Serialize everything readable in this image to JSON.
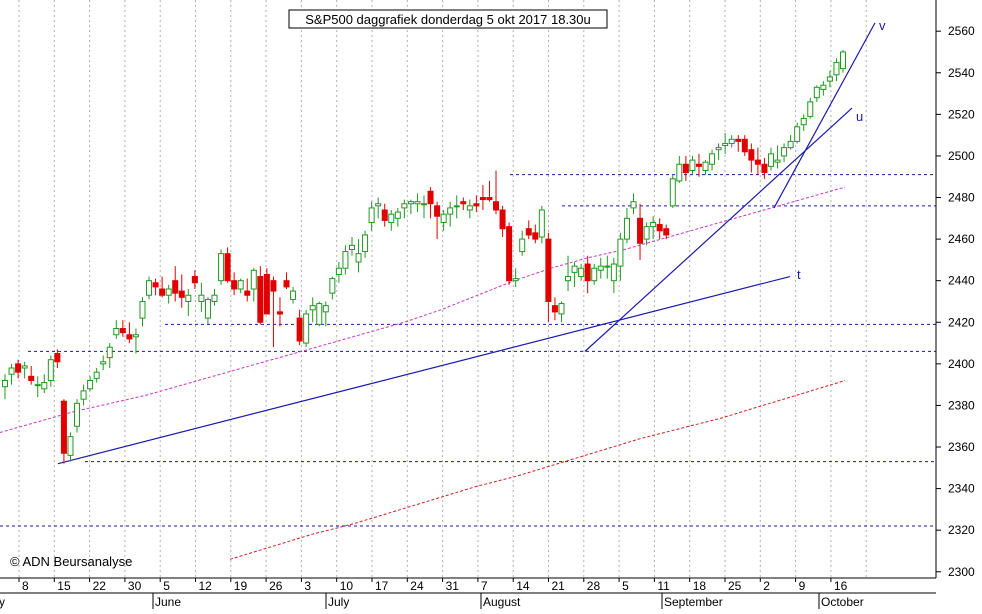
{
  "chart_data": {
    "type": "candlestick",
    "title": "S&P500 daggrafiek donderdag 5 okt 2017 18.30u",
    "copyright": "© ADN Beursanalyse",
    "ylim": [
      2297,
      2575
    ],
    "yticks": [
      2300,
      2320,
      2340,
      2360,
      2380,
      2400,
      2420,
      2440,
      2460,
      2480,
      2500,
      2520,
      2540,
      2560
    ],
    "xtick_labels": [
      "8",
      "15",
      "22",
      "30",
      "5",
      "12",
      "19",
      "26",
      "3",
      "10",
      "17",
      "24",
      "31",
      "7",
      "14",
      "21",
      "28",
      "5",
      "11",
      "18",
      "25",
      "2",
      "9",
      "16"
    ],
    "month_labels": [
      "June",
      "July",
      "August",
      "September",
      "October"
    ],
    "left_edge_label": "y",
    "candles": [
      [
        2389,
        2395,
        2383,
        2392
      ],
      [
        2395,
        2400,
        2390,
        2398
      ],
      [
        2400,
        2402,
        2393,
        2396
      ],
      [
        2398,
        2401,
        2393,
        2399
      ],
      [
        2394,
        2399,
        2390,
        2392
      ],
      [
        2390,
        2394,
        2384,
        2390
      ],
      [
        2388,
        2395,
        2386,
        2391
      ],
      [
        2392,
        2404,
        2389,
        2402
      ],
      [
        2405,
        2407,
        2398,
        2401
      ],
      [
        2382,
        2383,
        2352,
        2357
      ],
      [
        2356,
        2367,
        2353,
        2365
      ],
      [
        2370,
        2383,
        2367,
        2381
      ],
      [
        2383,
        2390,
        2380,
        2387
      ],
      [
        2388,
        2394,
        2387,
        2392
      ],
      [
        2393,
        2398,
        2391,
        2396
      ],
      [
        2400,
        2404,
        2397,
        2401
      ],
      [
        2403,
        2410,
        2398,
        2408
      ],
      [
        2414,
        2421,
        2412,
        2417
      ],
      [
        2417,
        2421,
        2413,
        2415
      ],
      [
        2414,
        2420,
        2410,
        2412
      ],
      [
        2413,
        2417,
        2405,
        2414
      ],
      [
        2422,
        2432,
        2418,
        2430
      ],
      [
        2433,
        2442,
        2431,
        2440
      ],
      [
        2439,
        2441,
        2433,
        2437
      ],
      [
        2436,
        2442,
        2432,
        2433
      ],
      [
        2433,
        2438,
        2429,
        2436
      ],
      [
        2440,
        2447,
        2430,
        2434
      ],
      [
        2435,
        2443,
        2427,
        2432
      ],
      [
        2430,
        2436,
        2423,
        2433
      ],
      [
        2442,
        2445,
        2436,
        2439
      ],
      [
        2430,
        2439,
        2425,
        2433
      ],
      [
        2422,
        2432,
        2419,
        2431
      ],
      [
        2430,
        2436,
        2428,
        2433
      ],
      [
        2440,
        2455,
        2438,
        2453
      ],
      [
        2453,
        2456,
        2439,
        2440
      ],
      [
        2440,
        2444,
        2433,
        2436
      ],
      [
        2436,
        2441,
        2434,
        2440
      ],
      [
        2435,
        2441,
        2430,
        2433
      ],
      [
        2436,
        2446,
        2430,
        2445
      ],
      [
        2442,
        2447,
        2419,
        2420
      ],
      [
        2443,
        2446,
        2424,
        2424
      ],
      [
        2440,
        2442,
        2408,
        2435
      ],
      [
        2425,
        2432,
        2418,
        2424
      ],
      [
        2440,
        2444,
        2436,
        2437
      ],
      [
        2431,
        2437,
        2429,
        2435
      ],
      [
        2422,
        2426,
        2409,
        2411
      ],
      [
        2410,
        2426,
        2408,
        2424
      ],
      [
        2426,
        2432,
        2420,
        2428
      ],
      [
        2419,
        2430,
        2418,
        2429
      ],
      [
        2425,
        2430,
        2418,
        2428
      ],
      [
        2434,
        2442,
        2431,
        2441
      ],
      [
        2443,
        2449,
        2439,
        2446
      ],
      [
        2446,
        2457,
        2443,
        2454
      ],
      [
        2455,
        2461,
        2452,
        2457
      ],
      [
        2449,
        2460,
        2444,
        2453
      ],
      [
        2454,
        2464,
        2451,
        2462
      ],
      [
        2468,
        2478,
        2464,
        2475
      ],
      [
        2476,
        2480,
        2470,
        2477
      ],
      [
        2474,
        2477,
        2466,
        2469
      ],
      [
        2468,
        2474,
        2464,
        2472
      ],
      [
        2470,
        2475,
        2466,
        2473
      ],
      [
        2475,
        2479,
        2470,
        2477
      ],
      [
        2477,
        2479,
        2472,
        2478
      ],
      [
        2477,
        2482,
        2473,
        2478
      ],
      [
        2477,
        2481,
        2470,
        2477
      ],
      [
        2483,
        2485,
        2470,
        2477
      ],
      [
        2476,
        2478,
        2460,
        2471
      ],
      [
        2468,
        2474,
        2464,
        2472
      ],
      [
        2472,
        2478,
        2466,
        2475
      ],
      [
        2476,
        2481,
        2470,
        2476
      ],
      [
        2478,
        2480,
        2474,
        2477
      ],
      [
        2474,
        2479,
        2470,
        2476
      ],
      [
        2477,
        2481,
        2473,
        2476
      ],
      [
        2480,
        2486,
        2474,
        2479
      ],
      [
        2480,
        2488,
        2478,
        2479
      ],
      [
        2478,
        2493,
        2472,
        2474
      ],
      [
        2474,
        2476,
        2461,
        2465
      ],
      [
        2466,
        2468,
        2438,
        2440
      ],
      [
        2440,
        2446,
        2437,
        2441
      ],
      [
        2454,
        2464,
        2452,
        2460
      ],
      [
        2465,
        2469,
        2460,
        2462
      ],
      [
        2463,
        2467,
        2458,
        2460
      ],
      [
        2461,
        2476,
        2458,
        2474
      ],
      [
        2460,
        2463,
        2420,
        2430
      ],
      [
        2428,
        2432,
        2421,
        2425
      ],
      [
        2424,
        2430,
        2420,
        2429
      ],
      [
        2440,
        2452,
        2435,
        2442
      ],
      [
        2444,
        2449,
        2437,
        2447
      ],
      [
        2442,
        2448,
        2440,
        2446
      ],
      [
        2448,
        2452,
        2434,
        2440
      ],
      [
        2440,
        2448,
        2438,
        2446
      ],
      [
        2445,
        2451,
        2441,
        2447
      ],
      [
        2447,
        2452,
        2441,
        2447
      ],
      [
        2440,
        2451,
        2434,
        2448
      ],
      [
        2447,
        2463,
        2440,
        2460
      ],
      [
        2460,
        2475,
        2458,
        2470
      ],
      [
        2475,
        2482,
        2472,
        2478
      ],
      [
        2470,
        2477,
        2450,
        2458
      ],
      [
        2460,
        2468,
        2457,
        2466
      ],
      [
        2466,
        2471,
        2460,
        2468
      ],
      [
        2467,
        2470,
        2460,
        2464
      ],
      [
        2465,
        2467,
        2460,
        2462
      ],
      [
        2476,
        2491,
        2475,
        2489
      ],
      [
        2488,
        2500,
        2487,
        2496
      ],
      [
        2496,
        2500,
        2488,
        2492
      ],
      [
        2493,
        2500,
        2491,
        2498
      ],
      [
        2496,
        2501,
        2490,
        2495
      ],
      [
        2493,
        2498,
        2491,
        2497
      ],
      [
        2496,
        2503,
        2493,
        2501
      ],
      [
        2503,
        2506,
        2498,
        2504
      ],
      [
        2505,
        2511,
        2501,
        2506
      ],
      [
        2506,
        2510,
        2504,
        2508
      ],
      [
        2508,
        2510,
        2502,
        2507
      ],
      [
        2508,
        2510,
        2500,
        2502
      ],
      [
        2503,
        2506,
        2492,
        2498
      ],
      [
        2498,
        2504,
        2491,
        2496
      ],
      [
        2496,
        2499,
        2489,
        2492
      ],
      [
        2495,
        2504,
        2493,
        2501
      ],
      [
        2497,
        2505,
        2494,
        2498
      ],
      [
        2500,
        2506,
        2497,
        2504
      ],
      [
        2504,
        2510,
        2503,
        2507
      ],
      [
        2507,
        2516,
        2506,
        2514
      ],
      [
        2515,
        2520,
        2512,
        2518
      ],
      [
        2519,
        2528,
        2518,
        2526
      ],
      [
        2528,
        2534,
        2526,
        2533
      ],
      [
        2532,
        2536,
        2529,
        2534
      ],
      [
        2536,
        2541,
        2533,
        2538
      ],
      [
        2539,
        2547,
        2536,
        2545
      ],
      [
        2542,
        2551,
        2540,
        2550
      ]
    ],
    "moving_average_short": [
      2367,
      2372,
      2377,
      2381,
      2385,
      2390,
      2395,
      2400,
      2405,
      2410,
      2415,
      2420,
      2426,
      2433,
      2440,
      2446,
      2451,
      2455,
      2460,
      2465,
      2470,
      2475,
      2480,
      2485
    ],
    "moving_average_long": [
      2306,
      2312,
      2318,
      2323,
      2329,
      2335,
      2341,
      2346,
      2352,
      2358,
      2364,
      2369,
      2374,
      2380,
      2386,
      2392
    ],
    "support_levels": [
      2491,
      2476,
      2419,
      2406,
      2353,
      2322
    ],
    "trendlines": [
      {
        "label": "t",
        "from": [
          2352
        ],
        "to": [
          2442
        ]
      },
      {
        "label": "u",
        "from": [
          2406
        ],
        "to": [
          2523
        ]
      },
      {
        "label": "v",
        "from": [
          2475
        ],
        "to": [
          2564
        ]
      }
    ],
    "grid": true
  }
}
